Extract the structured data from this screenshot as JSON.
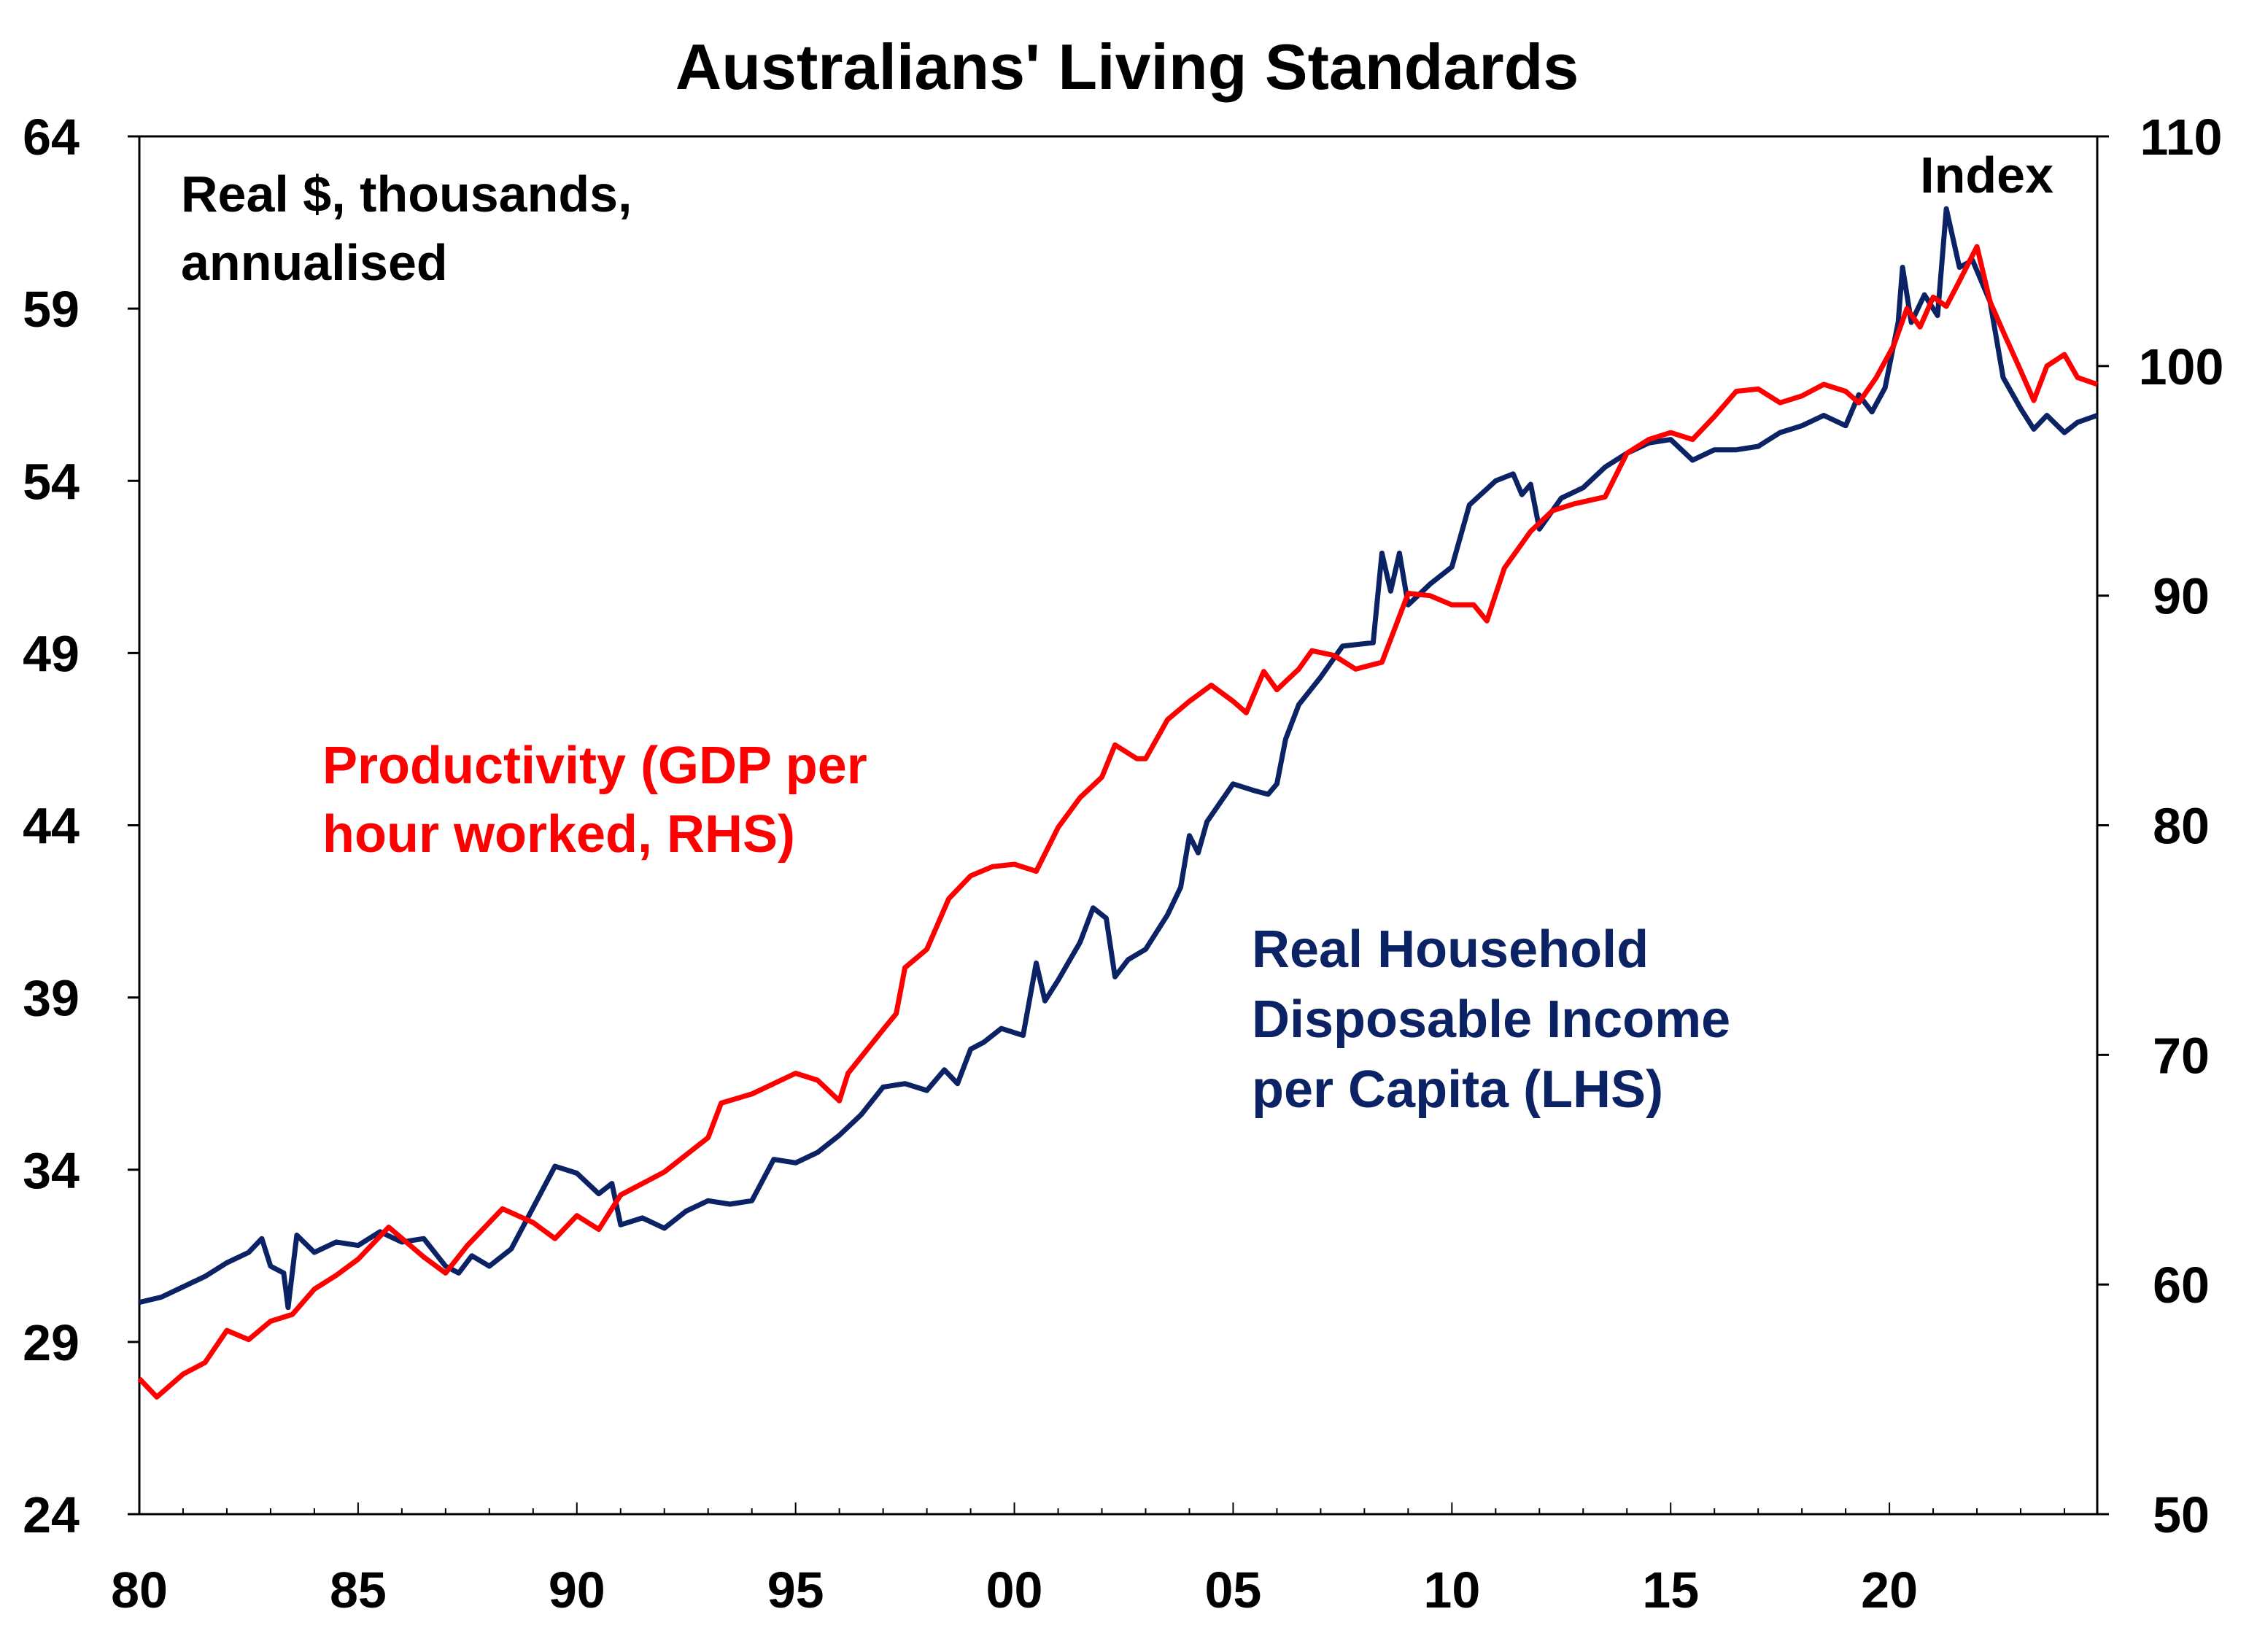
{
  "chart_data": {
    "type": "line",
    "title": "Australians' Living Standards",
    "left_axis_label": "Real $, thousands, annualised",
    "left_axis_label_lines": [
      "Real $, thousands,",
      "annualised"
    ],
    "right_axis_label": "Index",
    "xlim": [
      1980,
      2024.75
    ],
    "x_ticks": [
      1980,
      1985,
      1990,
      1995,
      2000,
      2005,
      2010,
      2015,
      2020
    ],
    "x_tick_labels": [
      "80",
      "85",
      "90",
      "95",
      "00",
      "05",
      "10",
      "15",
      "20"
    ],
    "ylim_left": [
      24,
      64
    ],
    "y_ticks_left": [
      "24",
      "29",
      "34",
      "39",
      "44",
      "49",
      "54",
      "59",
      "64"
    ],
    "ylim_right": [
      50,
      110
    ],
    "y_ticks_right": [
      "50",
      "60",
      "70",
      "80",
      "90",
      "100",
      "110"
    ],
    "grid": false,
    "series": [
      {
        "name": "Real Household Disposable Income per Capita (LHS)",
        "label_lines": [
          "Real Household",
          "Disposable Income",
          "per Capita (LHS)"
        ],
        "axis": "left",
        "color": "#0b2265",
        "points": [
          [
            1980,
            30.15
          ],
          [
            1980.5,
            30.3
          ],
          [
            1981,
            30.6
          ],
          [
            1981.5,
            30.9
          ],
          [
            1982,
            31.3
          ],
          [
            1982.5,
            31.6
          ],
          [
            1982.8,
            32.0
          ],
          [
            1983,
            31.2
          ],
          [
            1983.3,
            31.0
          ],
          [
            1983.4,
            30.0
          ],
          [
            1983.6,
            32.1
          ],
          [
            1984,
            31.6
          ],
          [
            1984.5,
            31.9
          ],
          [
            1985,
            31.8
          ],
          [
            1985.5,
            32.2
          ],
          [
            1986,
            31.9
          ],
          [
            1986.5,
            32.0
          ],
          [
            1987,
            31.2
          ],
          [
            1987.3,
            31.0
          ],
          [
            1987.6,
            31.5
          ],
          [
            1988,
            31.2
          ],
          [
            1988.5,
            31.7
          ],
          [
            1989,
            32.9
          ],
          [
            1989.5,
            34.1
          ],
          [
            1990,
            33.9
          ],
          [
            1990.5,
            33.3
          ],
          [
            1990.8,
            33.6
          ],
          [
            1991,
            32.4
          ],
          [
            1991.5,
            32.6
          ],
          [
            1992,
            32.3
          ],
          [
            1992.5,
            32.8
          ],
          [
            1993,
            33.1
          ],
          [
            1993.5,
            33.0
          ],
          [
            1994,
            33.1
          ],
          [
            1994.5,
            34.3
          ],
          [
            1995,
            34.2
          ],
          [
            1995.5,
            34.5
          ],
          [
            1996,
            35.0
          ],
          [
            1996.5,
            35.6
          ],
          [
            1997,
            36.4
          ],
          [
            1997.5,
            36.5
          ],
          [
            1998,
            36.3
          ],
          [
            1998.4,
            36.9
          ],
          [
            1998.7,
            36.5
          ],
          [
            1999,
            37.5
          ],
          [
            1999.3,
            37.7
          ],
          [
            1999.7,
            38.1
          ],
          [
            2000.2,
            37.9
          ],
          [
            2000.5,
            40.0
          ],
          [
            2000.7,
            38.9
          ],
          [
            2001,
            39.5
          ],
          [
            2001.5,
            40.6
          ],
          [
            2001.8,
            41.6
          ],
          [
            2002.1,
            41.3
          ],
          [
            2002.3,
            39.6
          ],
          [
            2002.6,
            40.1
          ],
          [
            2003,
            40.4
          ],
          [
            2003.5,
            41.4
          ],
          [
            2003.8,
            42.2
          ],
          [
            2004,
            43.7
          ],
          [
            2004.2,
            43.2
          ],
          [
            2004.4,
            44.1
          ],
          [
            2005,
            45.2
          ],
          [
            2005.5,
            45.0
          ],
          [
            2005.8,
            44.9
          ],
          [
            2006,
            45.2
          ],
          [
            2006.2,
            46.5
          ],
          [
            2006.5,
            47.5
          ],
          [
            2007,
            48.3
          ],
          [
            2007.5,
            49.2
          ],
          [
            2008.2,
            49.3
          ],
          [
            2008.4,
            51.9
          ],
          [
            2008.6,
            50.8
          ],
          [
            2008.8,
            51.9
          ],
          [
            2009,
            50.4
          ],
          [
            2009.5,
            51.0
          ],
          [
            2010,
            51.5
          ],
          [
            2010.4,
            53.3
          ],
          [
            2011,
            54.0
          ],
          [
            2011.4,
            54.2
          ],
          [
            2011.6,
            53.6
          ],
          [
            2011.8,
            53.9
          ],
          [
            2012,
            52.6
          ],
          [
            2012.5,
            53.5
          ],
          [
            2013,
            53.8
          ],
          [
            2013.5,
            54.4
          ],
          [
            2014,
            54.8
          ],
          [
            2014.5,
            55.1
          ],
          [
            2015,
            55.2
          ],
          [
            2015.5,
            54.6
          ],
          [
            2016,
            54.9
          ],
          [
            2016.5,
            54.9
          ],
          [
            2017,
            55.0
          ],
          [
            2017.5,
            55.4
          ],
          [
            2018,
            55.6
          ],
          [
            2018.5,
            55.9
          ],
          [
            2019,
            55.6
          ],
          [
            2019.3,
            56.5
          ],
          [
            2019.6,
            56.0
          ],
          [
            2019.9,
            56.7
          ],
          [
            2020.2,
            58.6
          ],
          [
            2020.3,
            60.2
          ],
          [
            2020.5,
            58.6
          ],
          [
            2020.8,
            59.4
          ],
          [
            2021.1,
            58.8
          ],
          [
            2021.3,
            61.9
          ],
          [
            2021.6,
            60.2
          ],
          [
            2021.9,
            60.4
          ],
          [
            2022.3,
            59.2
          ],
          [
            2022.6,
            57.0
          ],
          [
            2023,
            56.1
          ],
          [
            2023.3,
            55.5
          ],
          [
            2023.6,
            55.9
          ],
          [
            2024,
            55.4
          ],
          [
            2024.3,
            55.7
          ],
          [
            2024.75,
            55.9
          ]
        ]
      },
      {
        "name": "Productivity (GDP per hour worked, RHS)",
        "label_lines": [
          "Productivity (GDP per",
          "hour worked, RHS)"
        ],
        "axis": "right",
        "color": "#ff0000",
        "points": [
          [
            1980,
            55.9
          ],
          [
            1980.4,
            55.1
          ],
          [
            1981,
            56.1
          ],
          [
            1981.5,
            56.6
          ],
          [
            1982,
            58.0
          ],
          [
            1982.5,
            57.6
          ],
          [
            1983,
            58.4
          ],
          [
            1983.5,
            58.7
          ],
          [
            1984,
            59.8
          ],
          [
            1984.5,
            60.4
          ],
          [
            1985,
            61.1
          ],
          [
            1985.7,
            62.5
          ],
          [
            1986.5,
            61.2
          ],
          [
            1987,
            60.5
          ],
          [
            1987.5,
            61.7
          ],
          [
            1988.3,
            63.3
          ],
          [
            1989,
            62.7
          ],
          [
            1989.5,
            62.0
          ],
          [
            1990,
            63.0
          ],
          [
            1990.5,
            62.4
          ],
          [
            1991,
            63.9
          ],
          [
            1992,
            64.9
          ],
          [
            1993,
            66.4
          ],
          [
            1993.3,
            67.9
          ],
          [
            1994,
            68.3
          ],
          [
            1995,
            69.2
          ],
          [
            1995.5,
            68.9
          ],
          [
            1996,
            68.0
          ],
          [
            1996.2,
            69.2
          ],
          [
            1997,
            71.1
          ],
          [
            1997.3,
            71.8
          ],
          [
            1997.5,
            73.8
          ],
          [
            1998,
            74.6
          ],
          [
            1998.5,
            76.8
          ],
          [
            1999,
            77.8
          ],
          [
            1999.5,
            78.2
          ],
          [
            2000,
            78.3
          ],
          [
            2000.5,
            78.0
          ],
          [
            2001,
            79.9
          ],
          [
            2001.5,
            81.2
          ],
          [
            2002,
            82.1
          ],
          [
            2002.3,
            83.5
          ],
          [
            2002.8,
            82.9
          ],
          [
            2003,
            82.9
          ],
          [
            2003.5,
            84.6
          ],
          [
            2004,
            85.4
          ],
          [
            2004.5,
            86.1
          ],
          [
            2005,
            85.4
          ],
          [
            2005.3,
            84.9
          ],
          [
            2005.7,
            86.7
          ],
          [
            2006,
            85.9
          ],
          [
            2006.5,
            86.8
          ],
          [
            2006.8,
            87.6
          ],
          [
            2007.3,
            87.4
          ],
          [
            2007.8,
            86.8
          ],
          [
            2008.4,
            87.1
          ],
          [
            2009,
            90.1
          ],
          [
            2009.5,
            90.0
          ],
          [
            2010,
            89.6
          ],
          [
            2010.5,
            89.6
          ],
          [
            2010.8,
            88.9
          ],
          [
            2011.2,
            91.2
          ],
          [
            2011.8,
            92.8
          ],
          [
            2012.3,
            93.7
          ],
          [
            2012.8,
            94.0
          ],
          [
            2013.5,
            94.3
          ],
          [
            2014,
            96.2
          ],
          [
            2014.5,
            96.8
          ],
          [
            2015,
            97.1
          ],
          [
            2015.5,
            96.8
          ],
          [
            2016,
            97.8
          ],
          [
            2016.5,
            98.9
          ],
          [
            2017,
            99.0
          ],
          [
            2017.5,
            98.4
          ],
          [
            2018,
            98.7
          ],
          [
            2018.5,
            99.2
          ],
          [
            2019,
            98.9
          ],
          [
            2019.3,
            98.4
          ],
          [
            2019.7,
            99.5
          ],
          [
            2020.1,
            100.9
          ],
          [
            2020.4,
            102.5
          ],
          [
            2020.7,
            101.7
          ],
          [
            2021,
            103.0
          ],
          [
            2021.3,
            102.6
          ],
          [
            2021.6,
            103.7
          ],
          [
            2022,
            105.2
          ],
          [
            2022.3,
            102.8
          ],
          [
            2022.6,
            101.5
          ],
          [
            2023,
            99.8
          ],
          [
            2023.3,
            98.5
          ],
          [
            2023.6,
            100.0
          ],
          [
            2024,
            100.5
          ],
          [
            2024.3,
            99.5
          ],
          [
            2024.75,
            99.2
          ]
        ]
      }
    ]
  }
}
